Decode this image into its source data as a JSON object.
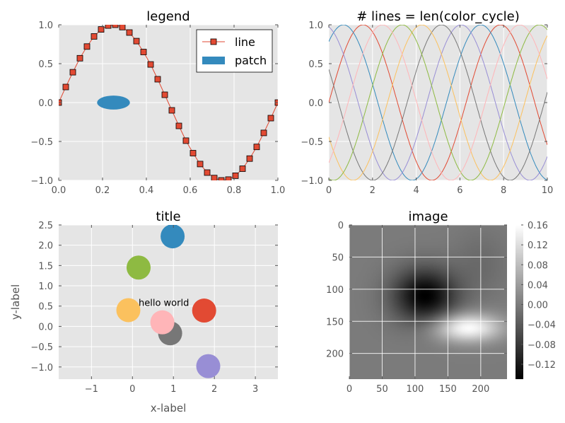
{
  "chart_data": [
    {
      "type": "line",
      "title": "legend",
      "xlabel": "",
      "ylabel": "",
      "xlim": [
        0,
        1
      ],
      "ylim": [
        -1,
        1
      ],
      "x_ticks": [
        "0.0",
        "0.2",
        "0.4",
        "0.6",
        "0.8",
        "1.0"
      ],
      "y_ticks": [
        "1.0",
        "0.5",
        "0.0",
        "−0.5",
        "−1.0"
      ],
      "grid": true,
      "legend": {
        "placement": "top-right",
        "entries": [
          {
            "label": "line",
            "marker": "square",
            "color": "#E24A33"
          },
          {
            "label": "patch",
            "marker": "patch",
            "color": "#348ABD"
          }
        ]
      },
      "series": [
        {
          "name": "line",
          "color": "#E24A33",
          "marker": "square",
          "x": [
            0,
            0.0323,
            0.0645,
            0.0968,
            0.129,
            0.1613,
            0.1935,
            0.2258,
            0.2581,
            0.2903,
            0.3226,
            0.3548,
            0.3871,
            0.4194,
            0.4516,
            0.4839,
            0.5161,
            0.5484,
            0.5806,
            0.6129,
            0.6452,
            0.6774,
            0.7097,
            0.7419,
            0.7742,
            0.8065,
            0.8387,
            0.871,
            0.9032,
            0.9355,
            0.9677,
            1.0
          ],
          "y": [
            0,
            0.2,
            0.39,
            0.57,
            0.72,
            0.85,
            0.94,
            0.99,
            1.0,
            0.97,
            0.9,
            0.79,
            0.65,
            0.49,
            0.3,
            0.1,
            -0.1,
            -0.3,
            -0.49,
            -0.65,
            -0.79,
            -0.9,
            -0.97,
            -1.0,
            -0.99,
            -0.94,
            -0.85,
            -0.72,
            -0.57,
            -0.39,
            -0.2,
            0
          ]
        }
      ],
      "patches": [
        {
          "name": "patch",
          "shape": "ellipse",
          "cx": 0.25,
          "cy": 0.0,
          "rx": 0.075,
          "ry": 0.09,
          "color": "#348ABD"
        }
      ]
    },
    {
      "type": "line",
      "title": "# lines = len(color_cycle)",
      "xlabel": "",
      "ylabel": "",
      "xlim": [
        0,
        10
      ],
      "ylim": [
        -1,
        1
      ],
      "x_ticks": [
        "0",
        "2",
        "4",
        "6",
        "8",
        "10"
      ],
      "y_ticks": [
        "1.0",
        "0.5",
        "0.0",
        "−0.5",
        "−1.0"
      ],
      "grid": true,
      "function": "sin(x + phase)",
      "series": [
        {
          "color": "#E24A33",
          "phase": 0.0
        },
        {
          "color": "#348ABD",
          "phase": 0.9
        },
        {
          "color": "#988ED5",
          "phase": 1.8
        },
        {
          "color": "#777777",
          "phase": 2.7
        },
        {
          "color": "#FBC15E",
          "phase": 3.6
        },
        {
          "color": "#8EBA42",
          "phase": 4.5
        },
        {
          "color": "#FFB5B8",
          "phase": 5.4
        }
      ]
    },
    {
      "type": "scatter",
      "title": "title",
      "xlabel": "x-label",
      "ylabel": "y-label",
      "xlim": [
        -1.8,
        3.55
      ],
      "ylim": [
        -1.3,
        2.5
      ],
      "x_ticks": [
        "−1",
        "0",
        "1",
        "2",
        "3"
      ],
      "y_ticks": [
        "2.5",
        "2.0",
        "1.5",
        "1.0",
        "0.5",
        "0.0",
        "−0.5",
        "−1.0"
      ],
      "grid": true,
      "annotation": {
        "text": "hello world",
        "x": 0.15,
        "y": 0.5
      },
      "points": [
        {
          "x": 0.98,
          "y": 2.22,
          "color": "#348ABD"
        },
        {
          "x": 0.15,
          "y": 1.45,
          "color": "#8EBA42"
        },
        {
          "x": 1.75,
          "y": 0.39,
          "color": "#E24A33"
        },
        {
          "x": -0.1,
          "y": 0.4,
          "color": "#FBC15E"
        },
        {
          "x": 0.92,
          "y": -0.17,
          "color": "#777777"
        },
        {
          "x": 0.73,
          "y": 0.1,
          "color": "#FFB5B8"
        },
        {
          "x": 1.85,
          "y": -0.98,
          "color": "#988ED5"
        }
      ]
    },
    {
      "type": "heatmap",
      "title": "image",
      "xlabel": "",
      "ylabel": "",
      "xlim": [
        0,
        240
      ],
      "ylim": [
        240,
        0
      ],
      "x_ticks": [
        "0",
        "50",
        "100",
        "150",
        "200"
      ],
      "y_ticks": [
        "0",
        "50",
        "100",
        "150",
        "200"
      ],
      "colormap": "gray",
      "value_range": [
        -0.15,
        0.16
      ],
      "features": [
        {
          "kind": "minimum",
          "x": 115,
          "y": 110,
          "value": -0.15
        },
        {
          "kind": "maximum",
          "x": 180,
          "y": 160,
          "value": 0.16
        }
      ],
      "colorbar": {
        "ticks": [
          "0.16",
          "0.12",
          "0.08",
          "0.04",
          "0.00",
          "−0.04",
          "−0.08",
          "−0.12"
        ]
      }
    }
  ]
}
